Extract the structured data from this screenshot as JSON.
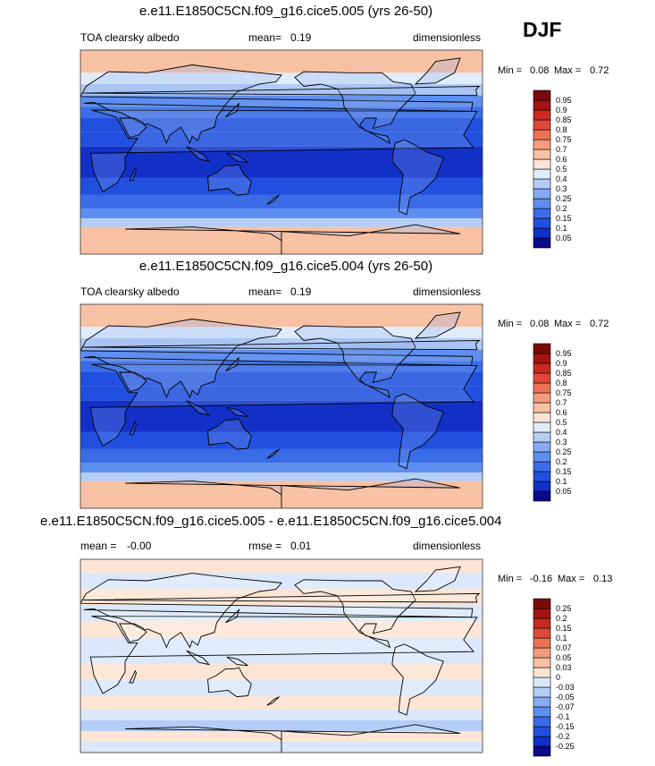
{
  "season": "DJF",
  "palette_positive": [
    "#0a0a8c",
    "#1230c8",
    "#2150e0",
    "#3a6ce8",
    "#5d8ef0",
    "#86abf2",
    "#b3cdf7",
    "#e0ecfb",
    "#fde4d4",
    "#f9c1a4",
    "#f49b7c",
    "#ec7255",
    "#e0493a",
    "#c82a22",
    "#a31414",
    "#7a0a0a"
  ],
  "palette_diff": [
    "#0a0a8c",
    "#1230c8",
    "#2150e0",
    "#3a6ce8",
    "#5d8ef0",
    "#86abf2",
    "#b3cdf7",
    "#dbe8fb",
    "#fde4d4",
    "#f9c1a4",
    "#f49b7c",
    "#ec7255",
    "#e0493a",
    "#c82a22",
    "#a31414",
    "#7a0a0a"
  ],
  "chart_data": [
    {
      "type": "heatmap",
      "title": "e.e11.E1850C5CN.f09_g16.cice5.005 (yrs 26-50)",
      "variable": "TOA clearsky albedo",
      "mean_label": "mean=",
      "mean": "0.19",
      "units": "dimensionless",
      "min_label": "Min =",
      "min": "0.08",
      "max_label": "Max =",
      "max": "0.72",
      "colorbar_levels": [
        "0.05",
        "0.1",
        "0.15",
        "0.2",
        "0.25",
        "0.3",
        "0.4",
        "0.5",
        "0.6",
        "0.7",
        "0.75",
        "0.8",
        "0.85",
        "0.9",
        "0.95"
      ],
      "latitude_bands": [
        {
          "lat": 85,
          "value": 0.65
        },
        {
          "lat": 75,
          "value": 0.6
        },
        {
          "lat": 65,
          "value": 0.45
        },
        {
          "lat": 55,
          "value": 0.3
        },
        {
          "lat": 45,
          "value": 0.22
        },
        {
          "lat": 35,
          "value": 0.16
        },
        {
          "lat": 25,
          "value": 0.12
        },
        {
          "lat": 10,
          "value": 0.1
        },
        {
          "lat": 0,
          "value": 0.08
        },
        {
          "lat": -15,
          "value": 0.09
        },
        {
          "lat": -30,
          "value": 0.12
        },
        {
          "lat": -45,
          "value": 0.17
        },
        {
          "lat": -55,
          "value": 0.22
        },
        {
          "lat": -62,
          "value": 0.35
        },
        {
          "lat": -70,
          "value": 0.62
        },
        {
          "lat": -85,
          "value": 0.68
        }
      ]
    },
    {
      "type": "heatmap",
      "title": "e.e11.E1850C5CN.f09_g16.cice5.004 (yrs 26-50)",
      "variable": "TOA clearsky albedo",
      "mean_label": "mean=",
      "mean": "0.19",
      "units": "dimensionless",
      "min_label": "Min =",
      "min": "0.08",
      "max_label": "Max =",
      "max": "0.72",
      "colorbar_levels": [
        "0.05",
        "0.1",
        "0.15",
        "0.2",
        "0.25",
        "0.3",
        "0.4",
        "0.5",
        "0.6",
        "0.7",
        "0.75",
        "0.8",
        "0.85",
        "0.9",
        "0.95"
      ],
      "latitude_bands": [
        {
          "lat": 85,
          "value": 0.65
        },
        {
          "lat": 75,
          "value": 0.6
        },
        {
          "lat": 65,
          "value": 0.45
        },
        {
          "lat": 55,
          "value": 0.3
        },
        {
          "lat": 45,
          "value": 0.22
        },
        {
          "lat": 35,
          "value": 0.16
        },
        {
          "lat": 25,
          "value": 0.12
        },
        {
          "lat": 10,
          "value": 0.1
        },
        {
          "lat": 0,
          "value": 0.08
        },
        {
          "lat": -15,
          "value": 0.09
        },
        {
          "lat": -30,
          "value": 0.12
        },
        {
          "lat": -45,
          "value": 0.17
        },
        {
          "lat": -55,
          "value": 0.22
        },
        {
          "lat": -62,
          "value": 0.35
        },
        {
          "lat": -70,
          "value": 0.62
        },
        {
          "lat": -85,
          "value": 0.68
        }
      ]
    },
    {
      "type": "heatmap",
      "title": "e.e11.E1850C5CN.f09_g16.cice5.005 - e.e11.E1850C5CN.f09_g16.cice5.004",
      "mean_label": "mean =",
      "mean": "-0.00",
      "rmse_label": "rmse =",
      "rmse": "0.01",
      "units": "dimensionless",
      "min_label": "Min =",
      "min": "-0.16",
      "max_label": "Max =",
      "max": "0.13",
      "colorbar_levels": [
        "-0.25",
        "-0.2",
        "-0.15",
        "-0.1",
        "-0.07",
        "-0.05",
        "-0.03",
        "0",
        "0.03",
        "0.05",
        "0.07",
        "0.1",
        "0.15",
        "0.2",
        "0.25"
      ],
      "latitude_bands": [
        {
          "lat": 85,
          "value": 0.01
        },
        {
          "lat": 70,
          "value": -0.01
        },
        {
          "lat": 55,
          "value": 0.01
        },
        {
          "lat": 40,
          "value": -0.01
        },
        {
          "lat": 25,
          "value": 0.01
        },
        {
          "lat": 10,
          "value": -0.01
        },
        {
          "lat": 0,
          "value": -0.01
        },
        {
          "lat": -15,
          "value": 0.01
        },
        {
          "lat": -30,
          "value": -0.01
        },
        {
          "lat": -45,
          "value": 0.01
        },
        {
          "lat": -55,
          "value": -0.01
        },
        {
          "lat": -65,
          "value": -0.05
        },
        {
          "lat": -75,
          "value": 0.01
        },
        {
          "lat": -85,
          "value": -0.01
        }
      ]
    }
  ]
}
